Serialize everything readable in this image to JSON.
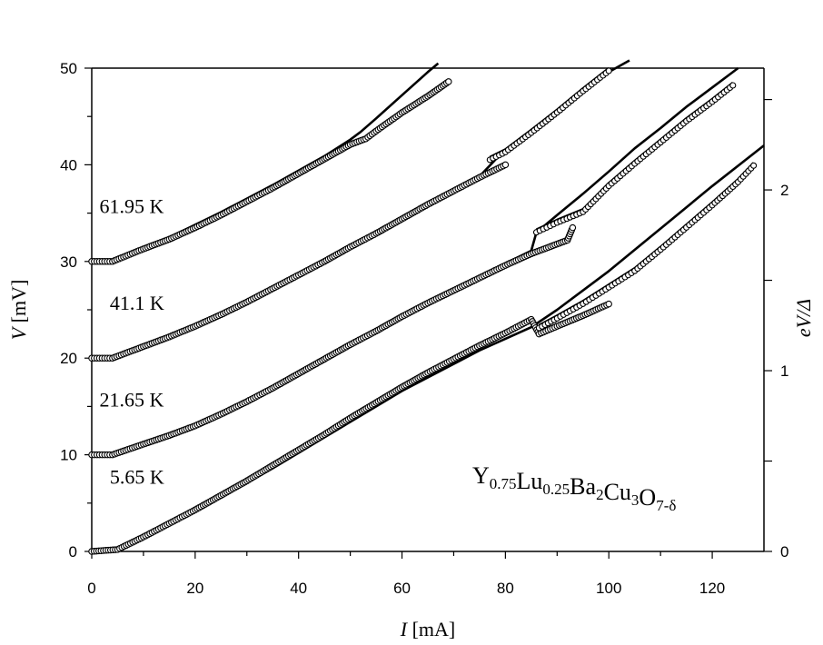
{
  "chart_data": {
    "type": "scatter",
    "xlabel": {
      "symbol": "I",
      "unit": " [mA]"
    },
    "ylabel": {
      "symbol": "V",
      "unit": " [mV]"
    },
    "y2label": {
      "symbol": "eV/Δ"
    },
    "xlim": [
      0,
      130
    ],
    "ylim": [
      0,
      50
    ],
    "x_ticks": [
      "0",
      "20",
      "40",
      "60",
      "80",
      "100",
      "120"
    ],
    "y_ticks": [
      "0",
      "10",
      "20",
      "30",
      "40",
      "50"
    ],
    "y2_ticks": [
      "0",
      "1",
      "2"
    ],
    "y2_per_unit_mV": 18.7,
    "grid": false,
    "annotation": {
      "compound": "Y0.75Lu0.25Ba2Cu3O7-δ",
      "parts": [
        {
          "text": "Y",
          "sub": "0.75"
        },
        {
          "text": "Lu",
          "sub": "0.25"
        },
        {
          "text": "Ba",
          "sub": "2"
        },
        {
          "text": "Cu",
          "sub": "3"
        },
        {
          "text": "O",
          "sub": "7-δ"
        }
      ]
    },
    "series": [
      {
        "name": "5.65 K",
        "offset_mV": 0,
        "measured": {
          "x": [
            0,
            5,
            10,
            15,
            20,
            25,
            30,
            35,
            40,
            45,
            50,
            55,
            60,
            65,
            70,
            75,
            80,
            85,
            86.5,
            90,
            95,
            100
          ],
          "y": [
            0,
            0.2,
            1.5,
            2.9,
            4.3,
            5.8,
            7.3,
            8.9,
            10.5,
            12.1,
            13.8,
            15.4,
            17.0,
            18.5,
            19.9,
            21.3,
            22.6,
            24.0,
            22.5,
            23.3,
            24.4,
            25.6
          ]
        },
        "model": {
          "x": [
            0,
            5,
            10,
            15,
            20,
            25,
            30,
            35,
            40,
            45,
            50,
            55,
            60,
            65,
            70,
            75,
            80,
            85,
            90,
            95,
            100,
            110,
            120,
            130
          ],
          "y": [
            0,
            0.3,
            1.4,
            2.7,
            4.1,
            5.6,
            7.1,
            8.6,
            10.2,
            11.8,
            13.4,
            15.0,
            16.6,
            18.0,
            19.4,
            20.8,
            22.0,
            23.2,
            25.0,
            27.0,
            29.0,
            33.4,
            37.8,
            42.0
          ]
        },
        "branch": {
          "x": [
            86.5,
            90,
            95,
            100,
            105,
            110,
            115,
            120,
            125,
            128
          ],
          "y": [
            23.4,
            24.4,
            25.9,
            27.6,
            29.3,
            31.5,
            33.8,
            36.1,
            38.5,
            40.2
          ]
        }
      },
      {
        "name": "21.65 K",
        "offset_mV": 10,
        "measured": {
          "x": [
            0,
            2,
            4,
            10,
            15,
            20,
            25,
            30,
            35,
            40,
            45,
            50,
            55,
            60,
            65,
            70,
            75,
            80,
            85,
            90,
            92,
            93
          ],
          "y": [
            10,
            10,
            10,
            11.1,
            12,
            13,
            14.2,
            15.5,
            16.9,
            18.4,
            19.9,
            21.4,
            22.8,
            24.3,
            25.7,
            27.0,
            28.3,
            29.6,
            30.8,
            31.8,
            32.2,
            33.5
          ]
        },
        "model": {
          "x": [
            0,
            2,
            4,
            10,
            15,
            20,
            25,
            30,
            35,
            40,
            45,
            50,
            55,
            60,
            65,
            70,
            75,
            80,
            85,
            86,
            90,
            95,
            100,
            105,
            110,
            115,
            120,
            125
          ],
          "y": [
            10,
            10,
            10,
            11.2,
            12.1,
            13.1,
            14.3,
            15.6,
            17.0,
            18.5,
            20.0,
            21.5,
            23.0,
            24.4,
            25.8,
            27.2,
            28.5,
            29.8,
            31.1,
            33.0,
            34.8,
            37.0,
            39.3,
            41.7,
            43.8,
            46.0,
            48.0,
            50.0
          ]
        },
        "branch": {
          "x": [
            86,
            90,
            95,
            100,
            105,
            110,
            115,
            120,
            124
          ],
          "y": [
            33.3,
            34.3,
            35.4,
            38.1,
            40.4,
            42.6,
            44.8,
            46.8,
            48.5
          ]
        }
      },
      {
        "name": "41.1 K",
        "offset_mV": 20,
        "measured": {
          "x": [
            0,
            2,
            4,
            10,
            15,
            20,
            25,
            30,
            35,
            40,
            45,
            50,
            55,
            60,
            65,
            70,
            75,
            80
          ],
          "y": [
            20,
            20,
            20,
            21.2,
            22.2,
            23.3,
            24.5,
            25.8,
            27.2,
            28.6,
            30.0,
            31.5,
            32.9,
            34.4,
            35.9,
            37.3,
            38.7,
            40.0
          ]
        },
        "model": {
          "x": [
            0,
            2,
            4,
            10,
            15,
            20,
            25,
            30,
            35,
            40,
            45,
            50,
            55,
            60,
            65,
            70,
            75,
            78,
            80,
            85,
            90,
            95,
            100,
            104
          ],
          "y": [
            20,
            20,
            20,
            21.3,
            22.3,
            23.4,
            24.6,
            25.9,
            27.3,
            28.7,
            30.1,
            31.6,
            33.0,
            34.5,
            35.9,
            37.3,
            38.8,
            40.5,
            41.5,
            43.6,
            45.6,
            47.6,
            49.6,
            50.8
          ]
        },
        "branch": {
          "x": [
            77,
            80,
            85,
            90,
            95,
            100
          ],
          "y": [
            40.8,
            41.6,
            43.6,
            45.7,
            47.9,
            50.0
          ]
        }
      },
      {
        "name": "61.95 K",
        "offset_mV": 30,
        "measured": {
          "x": [
            0,
            2,
            4,
            10,
            15,
            20,
            25,
            30,
            35,
            40,
            45,
            50,
            53,
            55,
            60,
            65,
            69
          ],
          "y": [
            30,
            30,
            30,
            31.3,
            32.3,
            33.5,
            34.8,
            36.2,
            37.6,
            39.1,
            40.6,
            42.1,
            42.7,
            43.5,
            45.4,
            47.1,
            48.6
          ]
        },
        "model": {
          "x": [
            0,
            2,
            4,
            10,
            15,
            20,
            25,
            30,
            35,
            40,
            45,
            50,
            52,
            55,
            60,
            65,
            67
          ],
          "y": [
            30,
            30,
            30,
            31.4,
            32.5,
            33.8,
            35.1,
            36.5,
            37.9,
            39.4,
            40.9,
            42.6,
            43.4,
            44.8,
            47.2,
            49.6,
            50.5
          ]
        }
      }
    ]
  }
}
